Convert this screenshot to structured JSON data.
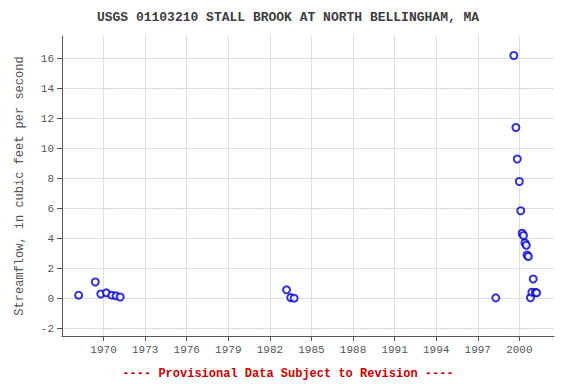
{
  "chart_data": {
    "type": "scatter",
    "title": "USGS 01103210 STALL BROOK AT NORTH BELLINGHAM, MA",
    "ylabel": "Streamflow, in cubic feet per second",
    "annotations": [
      {
        "text": "---- Provisional Data Subject to Revision ----",
        "color": "#cc0000"
      }
    ],
    "x": [
      1968.2,
      1969.4,
      1969.8,
      1970.2,
      1970.6,
      1970.9,
      1971.2,
      1983.2,
      1983.5,
      1983.75,
      1998.3,
      1999.6,
      1999.75,
      1999.85,
      2000.0,
      2000.1,
      2000.2,
      2000.3,
      2000.4,
      2000.5,
      2000.55,
      2000.65,
      2000.8,
      2000.9,
      2001.0,
      2001.15,
      2001.25
    ],
    "values": [
      0.22,
      1.1,
      0.3,
      0.38,
      0.22,
      0.18,
      0.1,
      0.58,
      0.06,
      0.02,
      0.04,
      16.2,
      11.4,
      9.3,
      7.8,
      5.85,
      4.35,
      4.2,
      3.7,
      3.55,
      2.9,
      2.8,
      0.05,
      0.42,
      1.3,
      0.4,
      0.38
    ],
    "color": "#0000CC",
    "marker": "circle",
    "xlim": [
      1967.0,
      2002.5
    ],
    "ylim": [
      -2.5,
      17.5
    ],
    "xticks": [
      1970,
      1973,
      1976,
      1979,
      1982,
      1985,
      1988,
      1991,
      1994,
      1997,
      2000
    ],
    "yticks": [
      -2,
      0,
      2,
      4,
      6,
      8,
      10,
      12,
      14,
      16
    ],
    "grid": true
  }
}
